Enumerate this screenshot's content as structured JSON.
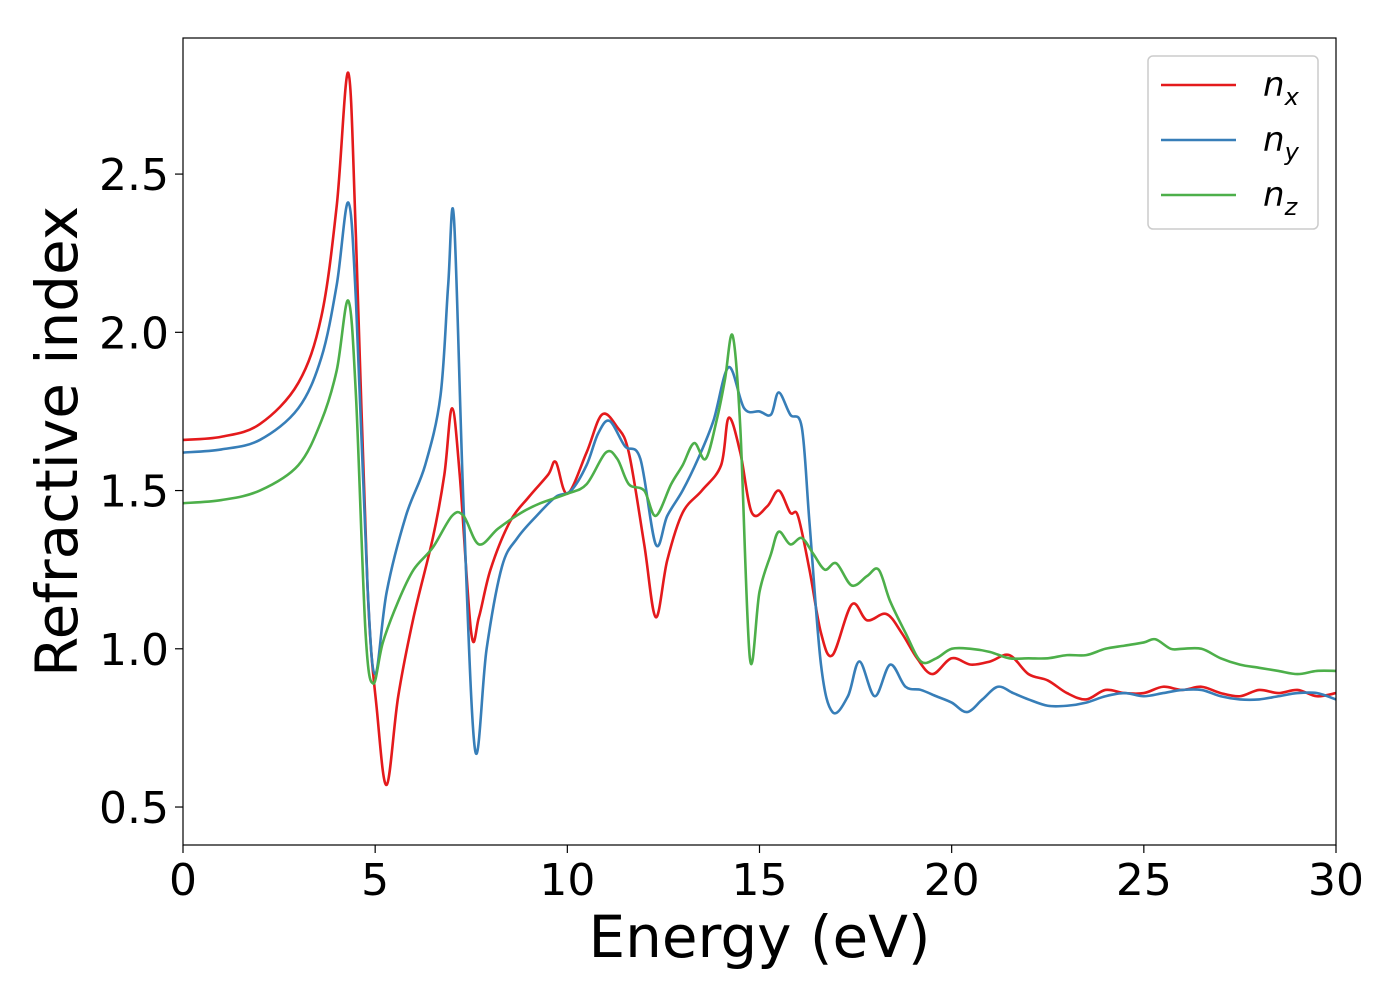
{
  "chart_data": {
    "type": "line",
    "title": "",
    "xlabel": "Energy (eV)",
    "ylabel": "Refractive index",
    "xlim": [
      0,
      30
    ],
    "ylim": [
      0.38,
      2.93
    ],
    "xticks": [
      0,
      5,
      10,
      15,
      20,
      25,
      30
    ],
    "xtick_labels": [
      "0",
      "5",
      "10",
      "15",
      "20",
      "25",
      "30"
    ],
    "yticks": [
      0.5,
      1.0,
      1.5,
      2.0,
      2.5
    ],
    "ytick_labels": [
      "0.5",
      "1.0",
      "1.5",
      "2.0",
      "2.5"
    ],
    "grid": false,
    "legend_position": "top-right",
    "series": [
      {
        "name": "n",
        "subscript": "x",
        "color": "#e41a1c",
        "points": [
          [
            0,
            1.66
          ],
          [
            1,
            1.67
          ],
          [
            2,
            1.71
          ],
          [
            3,
            1.84
          ],
          [
            3.6,
            2.05
          ],
          [
            4,
            2.4
          ],
          [
            4.3,
            2.82
          ],
          [
            4.5,
            2.3
          ],
          [
            4.8,
            1.2
          ],
          [
            5.05,
            0.8
          ],
          [
            5.3,
            0.57
          ],
          [
            5.6,
            0.85
          ],
          [
            6,
            1.1
          ],
          [
            6.5,
            1.35
          ],
          [
            6.8,
            1.55
          ],
          [
            7,
            1.76
          ],
          [
            7.2,
            1.55
          ],
          [
            7.5,
            1.05
          ],
          [
            7.7,
            1.1
          ],
          [
            8,
            1.25
          ],
          [
            8.5,
            1.4
          ],
          [
            9,
            1.48
          ],
          [
            9.5,
            1.55
          ],
          [
            9.7,
            1.59
          ],
          [
            10,
            1.49
          ],
          [
            10.5,
            1.62
          ],
          [
            10.9,
            1.74
          ],
          [
            11.3,
            1.7
          ],
          [
            11.6,
            1.62
          ],
          [
            12,
            1.33
          ],
          [
            12.3,
            1.1
          ],
          [
            12.6,
            1.28
          ],
          [
            13,
            1.43
          ],
          [
            13.5,
            1.5
          ],
          [
            14,
            1.58
          ],
          [
            14.2,
            1.73
          ],
          [
            14.5,
            1.62
          ],
          [
            14.8,
            1.43
          ],
          [
            15.2,
            1.45
          ],
          [
            15.5,
            1.5
          ],
          [
            15.8,
            1.43
          ],
          [
            16,
            1.42
          ],
          [
            16.3,
            1.25
          ],
          [
            16.6,
            1.05
          ],
          [
            16.9,
            0.98
          ],
          [
            17.4,
            1.14
          ],
          [
            17.8,
            1.09
          ],
          [
            18.3,
            1.11
          ],
          [
            18.7,
            1.05
          ],
          [
            19.1,
            0.97
          ],
          [
            19.5,
            0.92
          ],
          [
            20,
            0.97
          ],
          [
            20.5,
            0.95
          ],
          [
            21,
            0.96
          ],
          [
            21.5,
            0.98
          ],
          [
            22,
            0.92
          ],
          [
            22.5,
            0.9
          ],
          [
            23,
            0.86
          ],
          [
            23.5,
            0.84
          ],
          [
            24,
            0.87
          ],
          [
            24.5,
            0.86
          ],
          [
            25,
            0.86
          ],
          [
            25.5,
            0.88
          ],
          [
            26,
            0.87
          ],
          [
            26.5,
            0.88
          ],
          [
            27,
            0.86
          ],
          [
            27.5,
            0.85
          ],
          [
            28,
            0.87
          ],
          [
            28.5,
            0.86
          ],
          [
            29,
            0.87
          ],
          [
            29.5,
            0.85
          ],
          [
            30,
            0.86
          ]
        ]
      },
      {
        "name": "n",
        "subscript": "y",
        "color": "#377eb8",
        "points": [
          [
            0,
            1.62
          ],
          [
            1,
            1.63
          ],
          [
            2,
            1.66
          ],
          [
            3,
            1.76
          ],
          [
            3.6,
            1.92
          ],
          [
            4,
            2.15
          ],
          [
            4.3,
            2.41
          ],
          [
            4.5,
            2.1
          ],
          [
            4.8,
            1.2
          ],
          [
            5,
            0.92
          ],
          [
            5.3,
            1.18
          ],
          [
            5.8,
            1.42
          ],
          [
            6.3,
            1.58
          ],
          [
            6.7,
            1.8
          ],
          [
            6.9,
            2.15
          ],
          [
            7.05,
            2.36
          ],
          [
            7.3,
            1.45
          ],
          [
            7.6,
            0.68
          ],
          [
            7.9,
            1.0
          ],
          [
            8.3,
            1.26
          ],
          [
            8.7,
            1.35
          ],
          [
            9.2,
            1.42
          ],
          [
            9.7,
            1.48
          ],
          [
            10.1,
            1.5
          ],
          [
            10.5,
            1.58
          ],
          [
            10.8,
            1.68
          ],
          [
            11.1,
            1.72
          ],
          [
            11.5,
            1.64
          ],
          [
            11.9,
            1.6
          ],
          [
            12.3,
            1.33
          ],
          [
            12.6,
            1.42
          ],
          [
            13,
            1.5
          ],
          [
            13.4,
            1.6
          ],
          [
            13.8,
            1.72
          ],
          [
            14.2,
            1.89
          ],
          [
            14.6,
            1.76
          ],
          [
            15,
            1.75
          ],
          [
            15.3,
            1.74
          ],
          [
            15.5,
            1.81
          ],
          [
            15.8,
            1.74
          ],
          [
            16.1,
            1.7
          ],
          [
            16.3,
            1.4
          ],
          [
            16.6,
            0.95
          ],
          [
            16.9,
            0.8
          ],
          [
            17.3,
            0.85
          ],
          [
            17.6,
            0.96
          ],
          [
            18,
            0.85
          ],
          [
            18.4,
            0.95
          ],
          [
            18.8,
            0.88
          ],
          [
            19.2,
            0.87
          ],
          [
            19.6,
            0.85
          ],
          [
            20,
            0.83
          ],
          [
            20.4,
            0.8
          ],
          [
            20.8,
            0.84
          ],
          [
            21.2,
            0.88
          ],
          [
            21.6,
            0.86
          ],
          [
            22,
            0.84
          ],
          [
            22.5,
            0.82
          ],
          [
            23,
            0.82
          ],
          [
            23.5,
            0.83
          ],
          [
            24,
            0.85
          ],
          [
            24.5,
            0.86
          ],
          [
            25,
            0.85
          ],
          [
            25.5,
            0.86
          ],
          [
            26,
            0.87
          ],
          [
            26.5,
            0.87
          ],
          [
            27,
            0.85
          ],
          [
            27.5,
            0.84
          ],
          [
            28,
            0.84
          ],
          [
            28.5,
            0.85
          ],
          [
            29,
            0.86
          ],
          [
            29.5,
            0.86
          ],
          [
            30,
            0.84
          ]
        ]
      },
      {
        "name": "n",
        "subscript": "z",
        "color": "#4daf4a",
        "points": [
          [
            0,
            1.46
          ],
          [
            1,
            1.47
          ],
          [
            2,
            1.5
          ],
          [
            3,
            1.58
          ],
          [
            3.6,
            1.72
          ],
          [
            4,
            1.88
          ],
          [
            4.3,
            2.1
          ],
          [
            4.5,
            1.8
          ],
          [
            4.75,
            1.05
          ],
          [
            4.95,
            0.89
          ],
          [
            5.2,
            1.02
          ],
          [
            5.6,
            1.15
          ],
          [
            6,
            1.25
          ],
          [
            6.5,
            1.32
          ],
          [
            7,
            1.42
          ],
          [
            7.3,
            1.42
          ],
          [
            7.7,
            1.33
          ],
          [
            8.2,
            1.38
          ],
          [
            8.8,
            1.43
          ],
          [
            9.3,
            1.46
          ],
          [
            10,
            1.49
          ],
          [
            10.5,
            1.52
          ],
          [
            11,
            1.62
          ],
          [
            11.3,
            1.6
          ],
          [
            11.6,
            1.52
          ],
          [
            12,
            1.5
          ],
          [
            12.3,
            1.42
          ],
          [
            12.7,
            1.52
          ],
          [
            13,
            1.58
          ],
          [
            13.3,
            1.65
          ],
          [
            13.6,
            1.6
          ],
          [
            13.9,
            1.73
          ],
          [
            14.1,
            1.85
          ],
          [
            14.3,
            1.99
          ],
          [
            14.5,
            1.7
          ],
          [
            14.75,
            0.97
          ],
          [
            15,
            1.18
          ],
          [
            15.3,
            1.3
          ],
          [
            15.5,
            1.37
          ],
          [
            15.8,
            1.33
          ],
          [
            16.1,
            1.35
          ],
          [
            16.4,
            1.3
          ],
          [
            16.7,
            1.25
          ],
          [
            17,
            1.27
          ],
          [
            17.4,
            1.2
          ],
          [
            17.8,
            1.23
          ],
          [
            18.1,
            1.25
          ],
          [
            18.4,
            1.15
          ],
          [
            18.8,
            1.05
          ],
          [
            19.2,
            0.96
          ],
          [
            19.6,
            0.97
          ],
          [
            20,
            1.0
          ],
          [
            20.5,
            1.0
          ],
          [
            21,
            0.99
          ],
          [
            21.5,
            0.97
          ],
          [
            22,
            0.97
          ],
          [
            22.5,
            0.97
          ],
          [
            23,
            0.98
          ],
          [
            23.5,
            0.98
          ],
          [
            24,
            1.0
          ],
          [
            24.5,
            1.01
          ],
          [
            25,
            1.02
          ],
          [
            25.3,
            1.03
          ],
          [
            25.7,
            1.0
          ],
          [
            26,
            1.0
          ],
          [
            26.5,
            1.0
          ],
          [
            27,
            0.97
          ],
          [
            27.5,
            0.95
          ],
          [
            28,
            0.94
          ],
          [
            28.5,
            0.93
          ],
          [
            29,
            0.92
          ],
          [
            29.5,
            0.93
          ],
          [
            30,
            0.93
          ]
        ]
      }
    ]
  }
}
